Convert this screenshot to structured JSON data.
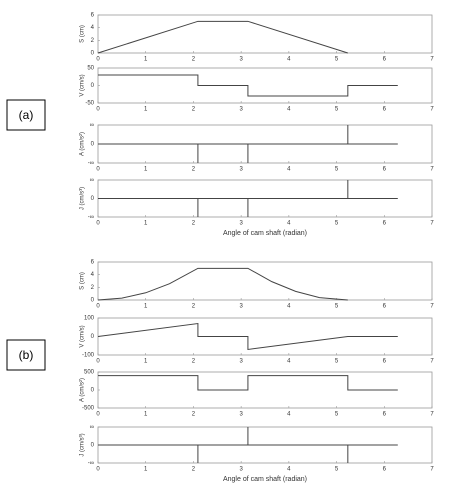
{
  "labels": [
    "(a)",
    "(b)"
  ],
  "chart_data": [
    {
      "type": "line",
      "ylabel": "S (cm)",
      "xlim": [
        0,
        7
      ],
      "xticks": [
        0,
        1,
        2,
        3,
        4,
        5,
        6,
        7
      ],
      "ylim": [
        0,
        6
      ],
      "yticks": [
        0,
        2,
        4,
        6
      ],
      "color": "#444444",
      "series": [
        {
          "x": [
            0,
            2.094,
            3.142,
            5.236
          ],
          "values": [
            0,
            5,
            5,
            0
          ]
        }
      ]
    },
    {
      "type": "line",
      "ylabel": "V (cm/s)",
      "xlim": [
        0,
        7
      ],
      "xticks": [
        0,
        1,
        2,
        3,
        4,
        5,
        6,
        7
      ],
      "ylim": [
        -50,
        50
      ],
      "yticks": [
        50,
        0,
        -50
      ],
      "color": "#444444",
      "series": [
        {
          "x": [
            0,
            2.094,
            2.094,
            3.142,
            3.142,
            5.236,
            5.236,
            6.283
          ],
          "values": [
            30,
            30,
            0,
            0,
            -30,
            -30,
            0,
            0
          ]
        }
      ]
    },
    {
      "type": "line",
      "ylabel": "A (cm/s²)",
      "xlim": [
        0,
        7
      ],
      "xticks": [
        0,
        1,
        2,
        3,
        4,
        5,
        6,
        7
      ],
      "ylim": [
        -1,
        1
      ],
      "yticks": [
        {
          "value": 1,
          "label": "∞"
        },
        0,
        {
          "value": -1,
          "label": "-∞"
        }
      ],
      "color": "#444444",
      "series": [
        {
          "x": [
            0,
            2.094,
            2.094,
            2.094,
            3.142,
            3.142,
            3.142,
            5.236,
            5.236,
            5.236,
            6.283
          ],
          "values": [
            0,
            0,
            -1,
            0,
            0,
            -1,
            0,
            0,
            1,
            0,
            0
          ]
        }
      ]
    },
    {
      "type": "line",
      "ylabel": "J (cm/s³)",
      "xlabel": "Angle of cam shaft (radian)",
      "xlim": [
        0,
        7
      ],
      "xticks": [
        0,
        1,
        2,
        3,
        4,
        5,
        6,
        7
      ],
      "ylim": [
        -1,
        1
      ],
      "yticks": [
        {
          "value": 1,
          "label": "∞"
        },
        0,
        {
          "value": -1,
          "label": "-∞"
        }
      ],
      "color": "#444444",
      "series": [
        {
          "x": [
            0,
            2.094,
            2.094,
            2.094,
            3.142,
            3.142,
            3.142,
            5.236,
            5.236,
            5.236,
            6.283
          ],
          "values": [
            0,
            0,
            -1,
            0,
            0,
            -1,
            0,
            0,
            1,
            0,
            0
          ]
        }
      ]
    },
    {
      "type": "line",
      "ylabel": "S (cm)",
      "xlim": [
        0,
        7
      ],
      "xticks": [
        0,
        1,
        2,
        3,
        4,
        5,
        6,
        7
      ],
      "ylim": [
        0,
        6
      ],
      "yticks": [
        0,
        2,
        4,
        6
      ],
      "color": "#444444",
      "series": [
        {
          "x": [
            0,
            0.5,
            1,
            1.5,
            2.094,
            3.142,
            3.642,
            4.142,
            4.642,
            5.236
          ],
          "values": [
            0,
            0.29,
            1.14,
            2.57,
            5,
            5,
            2.9,
            1.36,
            0.37,
            0
          ]
        }
      ]
    },
    {
      "type": "line",
      "ylabel": "V (cm/s)",
      "xlim": [
        0,
        7
      ],
      "xticks": [
        0,
        1,
        2,
        3,
        4,
        5,
        6,
        7
      ],
      "ylim": [
        -100,
        100
      ],
      "yticks": [
        100,
        0,
        -100
      ],
      "color": "#444444",
      "series": [
        {
          "x": [
            0,
            2.094,
            2.094,
            3.142,
            3.142,
            5.236,
            6.283
          ],
          "values": [
            0,
            70,
            0,
            0,
            -70,
            0,
            0
          ]
        }
      ]
    },
    {
      "type": "line",
      "ylabel": "A (cm/s²)",
      "xlim": [
        0,
        7
      ],
      "xticks": [
        0,
        1,
        2,
        3,
        4,
        5,
        6,
        7
      ],
      "ylim": [
        -500,
        500
      ],
      "yticks": [
        500,
        0,
        -500
      ],
      "color": "#444444",
      "series": [
        {
          "x": [
            0,
            2.094,
            2.094,
            3.142,
            3.142,
            5.236,
            5.236,
            6.283
          ],
          "values": [
            400,
            400,
            0,
            0,
            400,
            400,
            0,
            0
          ]
        }
      ]
    },
    {
      "type": "line",
      "ylabel": "J (cm/s³)",
      "xlabel": "Angle of cam shaft (radian)",
      "xlim": [
        0,
        7
      ],
      "xticks": [
        0,
        1,
        2,
        3,
        4,
        5,
        6,
        7
      ],
      "ylim": [
        -1,
        1
      ],
      "yticks": [
        {
          "value": 1,
          "label": "∞"
        },
        0,
        {
          "value": -1,
          "label": "-∞"
        }
      ],
      "color": "#444444",
      "series": [
        {
          "x": [
            0,
            2.094,
            2.094,
            2.094,
            3.142,
            3.142,
            3.142,
            5.236,
            5.236,
            5.236,
            6.283
          ],
          "values": [
            0,
            0,
            -1,
            0,
            0,
            1,
            0,
            0,
            -1,
            0,
            0
          ]
        }
      ]
    }
  ]
}
